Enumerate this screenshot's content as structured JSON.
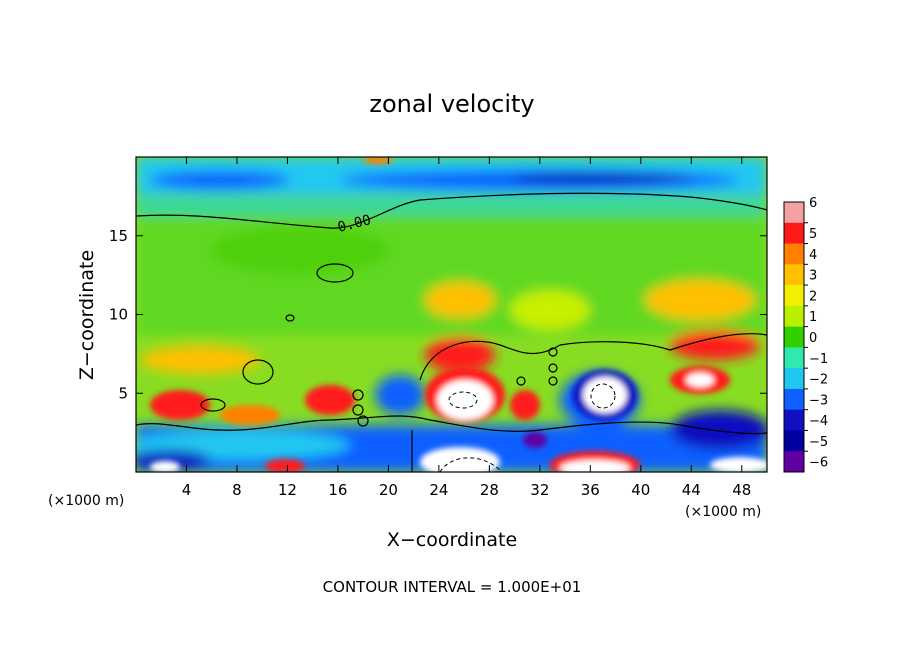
{
  "chart_data": {
    "type": "heatmap",
    "title": "zonal velocity",
    "xlabel": "X−coordinate",
    "ylabel": "Z−coordinate",
    "x_unit_left": "(×1000 m)",
    "x_unit_right": "(×1000 m)",
    "xlim": [
      0,
      50
    ],
    "ylim": [
      0,
      20
    ],
    "xticks": [
      4,
      8,
      12,
      16,
      20,
      24,
      28,
      32,
      36,
      40,
      44,
      48
    ],
    "yticks": [
      5,
      10,
      15
    ],
    "colorbar": {
      "levels": [
        6,
        5,
        4,
        3,
        2,
        1,
        0,
        -1,
        -2,
        -3,
        -4,
        -5,
        -6
      ],
      "labels": [
        "6",
        "5",
        "4",
        "3",
        "2",
        "1",
        "0",
        "−1",
        "−2",
        "−3",
        "−4",
        "−5",
        "−6"
      ],
      "colors": [
        "#f2a0a0",
        "#ff1a1a",
        "#ff8000",
        "#ffc000",
        "#f2f000",
        "#b8f000",
        "#30d000",
        "#30e8b0",
        "#20c8f0",
        "#1060ff",
        "#1010c0",
        "#0000a0",
        "#6000a0"
      ]
    },
    "contour_label": "0.00",
    "contour_interval_text": "CONTOUR INTERVAL = 1.000E+01",
    "grid": false
  }
}
